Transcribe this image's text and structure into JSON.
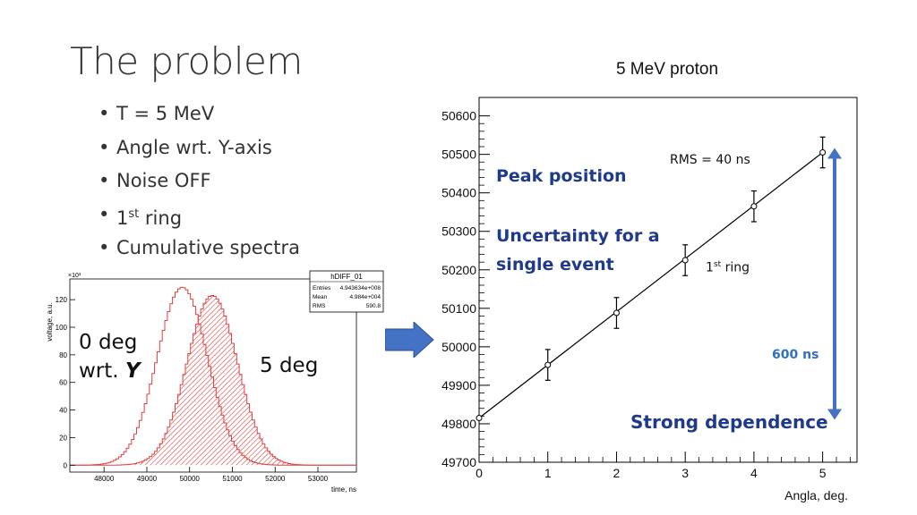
{
  "slide": {
    "title": "The problem",
    "bullets": [
      {
        "text": "T = 5 MeV"
      },
      {
        "text": "Angle wrt. Y-axis"
      },
      {
        "text": "Noise OFF"
      },
      {
        "pre": "1",
        "sup": "st",
        "post": " ring"
      },
      {
        "text": "Cumulative spectra"
      }
    ],
    "labels": {
      "zero_deg_line1": "0 deg",
      "zero_deg_line2": "wrt.",
      "zero_deg_axis": "Y",
      "five_deg": "5 deg",
      "peak_position": "Peak position",
      "uncertainty_line1": "Uncertainty for a",
      "uncertainty_line2": "single event",
      "rms_note": "RMS = 40 ns",
      "ring_pre": "1",
      "ring_sup": "st",
      "ring_post": " ring",
      "span_ns": "600 ns",
      "strong_dependence": "Strong dependence"
    },
    "colors": {
      "accent_blue": "#2f5fb0",
      "annotation_blue": "#1f3a8a",
      "hist_red": "#e04040",
      "arrow_blue": "#4472c4"
    }
  },
  "chart_data": [
    {
      "type": "area",
      "title": "hDIFF_01",
      "xlabel": "time, ns",
      "ylabel": "voltage, a.u.",
      "y_multiplier": "×10³",
      "xlim": [
        47200,
        53900
      ],
      "ylim": [
        -5,
        135
      ],
      "x_ticks": [
        48000,
        49000,
        50000,
        51000,
        52000,
        53000
      ],
      "y_ticks": [
        0,
        20,
        40,
        60,
        80,
        100,
        120
      ],
      "stats": {
        "Entries": "4.943634e+008",
        "Mean": "4.984e+004",
        "RMS": "590.8"
      },
      "series": [
        {
          "name": "0 deg wrt. Y",
          "peak_x": 49800,
          "peak_y": 129,
          "sigma": 590
        },
        {
          "name": "5 deg",
          "peak_x": 50500,
          "peak_y": 123,
          "sigma": 590
        }
      ]
    },
    {
      "type": "scatter",
      "title": "5 MeV proton",
      "xlabel": "Angla, deg.",
      "ylabel": "",
      "xlim": [
        0,
        5.5
      ],
      "ylim": [
        49700,
        50620
      ],
      "x_ticks": [
        0,
        1,
        2,
        3,
        4,
        5
      ],
      "y_ticks": [
        49700,
        49800,
        49900,
        50000,
        50100,
        50200,
        50300,
        50400,
        50500,
        50600
      ],
      "points": [
        {
          "x": 0,
          "y": 49815,
          "err": 0
        },
        {
          "x": 1,
          "y": 49953,
          "err": 40
        },
        {
          "x": 2,
          "y": 50088,
          "err": 40
        },
        {
          "x": 3,
          "y": 50225,
          "err": 40
        },
        {
          "x": 4,
          "y": 50365,
          "err": 40
        },
        {
          "x": 5,
          "y": 50505,
          "err": 40
        }
      ],
      "fit_line": {
        "x": [
          0,
          5
        ],
        "y": [
          49815,
          50505
        ]
      }
    }
  ]
}
